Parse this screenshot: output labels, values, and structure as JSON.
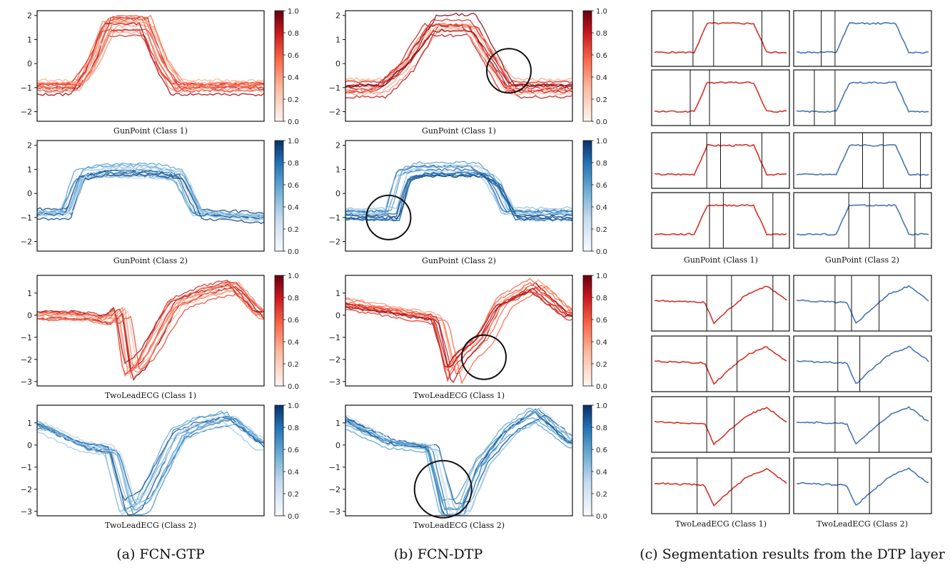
{
  "figure_captions": {
    "a": "(a) FCN-GTP",
    "b": "(b) FCN-DTP",
    "c": "(c) Segmentation results from the DTP layer"
  },
  "colors": {
    "reds": [
      "#fff5f0",
      "#fcbba1",
      "#fb6a4a",
      "#cb181d",
      "#67000d"
    ],
    "blues": [
      "#f7fbff",
      "#c6dbef",
      "#6baed6",
      "#2171b5",
      "#08306b"
    ],
    "circle": "#111111",
    "segment_line": "#111111"
  },
  "chart_data": [
    {
      "type": "line",
      "panel": "a-1",
      "title": "GunPoint (Class 1)",
      "colormap": "reds",
      "ylim": [
        -2.4,
        2.2
      ],
      "yticks": [
        "2",
        "1",
        "0",
        "−1",
        "−2"
      ],
      "ytick_values": [
        2,
        1,
        0,
        -1,
        -2
      ],
      "colorbar_ticks": [
        "1.0",
        "0.8",
        "0.6",
        "0.4",
        "0.2",
        "0.0"
      ],
      "colorbar_range": [
        0,
        1
      ],
      "x": [
        0,
        0.18,
        0.25,
        0.32,
        0.48,
        0.55,
        0.62,
        1
      ],
      "series": [
        [
          -1.0,
          -1.0,
          0.0,
          1.6,
          1.6,
          0.0,
          -1.0,
          -1.0
        ]
      ],
      "variants": 14
    },
    {
      "type": "line",
      "panel": "a-2",
      "title": "GunPoint (Class 2)",
      "colormap": "blues",
      "ylim": [
        -2.4,
        2.2
      ],
      "yticks": [
        "2",
        "1",
        "0",
        "−1",
        "−2"
      ],
      "ytick_values": [
        2,
        1,
        0,
        -1,
        -2
      ],
      "colorbar_ticks": [
        "1.0",
        "0.8",
        "0.6",
        "0.4",
        "0.2",
        "0.0"
      ],
      "colorbar_range": [
        0,
        1
      ],
      "x": [
        0,
        0.12,
        0.18,
        0.28,
        0.5,
        0.62,
        0.7,
        1
      ],
      "series": [
        [
          -0.8,
          -0.8,
          0.8,
          1.0,
          1.0,
          0.8,
          -0.8,
          -1.0
        ]
      ],
      "variants": 14
    },
    {
      "type": "line",
      "panel": "a-3",
      "title": "TwoLeadECG (Class 1)",
      "colormap": "reds",
      "ylim": [
        -3.2,
        1.8
      ],
      "yticks": [
        "1",
        "0",
        "−1",
        "−2",
        "−3"
      ],
      "ytick_values": [
        1,
        0,
        -1,
        -2,
        -3
      ],
      "colorbar_ticks": [
        "1.0",
        "0.8",
        "0.6",
        "0.4",
        "0.2",
        "0.0"
      ],
      "colorbar_range": [
        0,
        1
      ],
      "x": [
        0,
        0.2,
        0.33,
        0.38,
        0.42,
        0.48,
        0.62,
        0.75,
        0.88,
        1
      ],
      "series": [
        [
          0.0,
          0.0,
          -0.2,
          0.2,
          -2.5,
          -2.0,
          0.5,
          1.0,
          1.3,
          0.0
        ]
      ],
      "variants": 12
    },
    {
      "type": "line",
      "panel": "a-4",
      "title": "TwoLeadECG (Class 2)",
      "colormap": "blues",
      "ylim": [
        -3.2,
        1.8
      ],
      "yticks": [
        "1",
        "0",
        "−1",
        "−2",
        "−3"
      ],
      "ytick_values": [
        1,
        0,
        -1,
        -2,
        -3
      ],
      "colorbar_ticks": [
        "1.0",
        "0.8",
        "0.6",
        "0.4",
        "0.2",
        "0.0"
      ],
      "colorbar_range": [
        0,
        1
      ],
      "x": [
        0,
        0.2,
        0.33,
        0.4,
        0.47,
        0.62,
        0.72,
        0.85,
        1
      ],
      "series": [
        [
          1.0,
          0.0,
          -0.2,
          -3.0,
          -2.6,
          0.5,
          1.0,
          1.3,
          0.0
        ]
      ],
      "variants": 12
    },
    {
      "type": "line",
      "panel": "b-1",
      "title": "GunPoint (Class 1)",
      "colormap": "reds",
      "ylim": [
        -2.4,
        2.2
      ],
      "yticks": [
        "2",
        "1",
        "0",
        "−1",
        "−2"
      ],
      "ytick_values": [
        2,
        1,
        0,
        -1,
        -2
      ],
      "colorbar_ticks": [
        "1.0",
        "0.8",
        "0.6",
        "0.4",
        "0.2",
        "0.0"
      ],
      "colorbar_range": [
        0,
        1
      ],
      "x": [
        0,
        0.15,
        0.27,
        0.38,
        0.55,
        0.64,
        0.72,
        1
      ],
      "series": [
        [
          -1.0,
          -1.0,
          0.0,
          1.6,
          1.6,
          0.2,
          -1.0,
          -1.0
        ]
      ],
      "variants": 14
    },
    {
      "type": "line",
      "panel": "b-2",
      "title": "GunPoint (Class 2)",
      "colormap": "blues",
      "ylim": [
        -2.4,
        2.2
      ],
      "yticks": [
        "2",
        "1",
        "0",
        "−1",
        "−2"
      ],
      "ytick_values": [
        2,
        1,
        0,
        -1,
        -2
      ],
      "colorbar_ticks": [
        "1.0",
        "0.8",
        "0.6",
        "0.4",
        "0.2",
        "0.0"
      ],
      "colorbar_range": [
        0,
        1
      ],
      "x": [
        0,
        0.2,
        0.25,
        0.32,
        0.58,
        0.65,
        0.72,
        1
      ],
      "series": [
        [
          -0.8,
          -0.8,
          0.8,
          1.0,
          1.0,
          0.5,
          -0.8,
          -0.8
        ]
      ],
      "variants": 14
    },
    {
      "type": "line",
      "panel": "b-3",
      "title": "TwoLeadECG (Class 1)",
      "colormap": "reds",
      "ylim": [
        -3.2,
        1.8
      ],
      "yticks": [
        "1",
        "0",
        "−1",
        "−2",
        "−3"
      ],
      "ytick_values": [
        1,
        0,
        -1,
        -2,
        -3
      ],
      "colorbar_ticks": [
        "1.0",
        "0.8",
        "0.6",
        "0.4",
        "0.2",
        "0.0"
      ],
      "colorbar_range": [
        0,
        1
      ],
      "x": [
        0,
        0.3,
        0.42,
        0.48,
        0.52,
        0.62,
        0.7,
        0.85,
        1
      ],
      "series": [
        [
          0.5,
          0.0,
          -0.2,
          -2.8,
          -2.0,
          -1.0,
          0.5,
          1.3,
          0.0
        ]
      ],
      "variants": 12
    },
    {
      "type": "line",
      "panel": "b-4",
      "title": "TwoLeadECG (Class 2)",
      "colormap": "blues",
      "ylim": [
        -3.2,
        1.8
      ],
      "yticks": [
        "1",
        "0",
        "−1",
        "−2",
        "−3"
      ],
      "ytick_values": [
        1,
        0,
        -1,
        -2,
        -3
      ],
      "colorbar_ticks": [
        "1.0",
        "0.8",
        "0.6",
        "0.4",
        "0.2",
        "0.0"
      ],
      "colorbar_range": [
        0,
        1
      ],
      "x": [
        0,
        0.2,
        0.38,
        0.45,
        0.52,
        0.6,
        0.72,
        0.85,
        1
      ],
      "series": [
        [
          1.0,
          0.0,
          -0.2,
          -3.0,
          -3.0,
          -1.0,
          0.5,
          1.3,
          0.0
        ]
      ],
      "variants": 12
    }
  ],
  "segmentation": {
    "gunpoint_caption_left": "GunPoint (Class 1)",
    "gunpoint_caption_right": "GunPoint (Class 2)",
    "ecg_caption_left": "TwoLeadECG (Class 1)",
    "ecg_caption_right": "TwoLeadECG (Class 2)",
    "rows": [
      {
        "group": "gunpoint",
        "left": {
          "cuts": [
            0.3,
            0.45,
            0.8
          ]
        },
        "right": {
          "cuts": [
            0.2,
            0.3
          ]
        }
      },
      {
        "group": "gunpoint",
        "left": {
          "cuts": [
            0.28,
            0.42
          ]
        },
        "right": {
          "cuts": [
            0.15,
            0.3
          ]
        }
      },
      {
        "group": "gunpoint",
        "left": {
          "cuts": [
            0.4,
            0.5,
            0.8
          ]
        },
        "right": {
          "cuts": [
            0.5,
            0.65,
            0.92
          ]
        }
      },
      {
        "group": "gunpoint",
        "left": {
          "cuts": [
            0.42,
            0.52,
            0.88
          ]
        },
        "right": {
          "cuts": [
            0.4,
            0.55,
            0.88
          ]
        }
      },
      {
        "group": "ecg",
        "left": {
          "cuts": [
            0.4,
            0.58,
            0.88
          ]
        },
        "right": {
          "cuts": [
            0.3,
            0.42,
            0.62
          ]
        }
      },
      {
        "group": "ecg",
        "left": {
          "cuts": [
            0.4,
            0.62
          ]
        },
        "right": {
          "cuts": [
            0.32,
            0.48
          ]
        }
      },
      {
        "group": "ecg",
        "left": {
          "cuts": [
            0.4,
            0.6
          ]
        },
        "right": {
          "cuts": [
            0.3,
            0.62
          ]
        }
      },
      {
        "group": "ecg",
        "left": {
          "cuts": [
            0.33,
            0.58
          ]
        },
        "right": {
          "cuts": [
            0.32,
            0.55
          ]
        }
      }
    ]
  }
}
